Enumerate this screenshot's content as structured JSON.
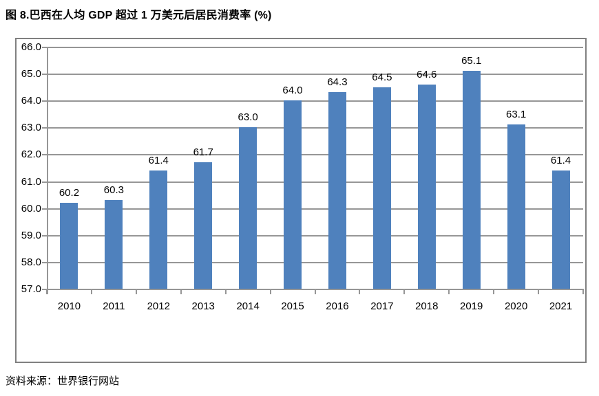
{
  "title": "图 8.巴西在人均 GDP 超过 1 万美元后居民消费率 (%)",
  "source": "资料来源：世界银行网站",
  "colors": {
    "bar": "#4F81BD",
    "gridline": "#969696",
    "border": "#808080",
    "text": "#000000"
  },
  "chart_data": {
    "type": "bar",
    "title": "图 8.巴西在人均 GDP 超过 1 万美元后居民消费率 (%)",
    "categories": [
      "2010",
      "2011",
      "2012",
      "2013",
      "2014",
      "2015",
      "2016",
      "2017",
      "2018",
      "2019",
      "2020",
      "2021"
    ],
    "values": [
      60.2,
      60.3,
      61.4,
      61.7,
      63.0,
      64.0,
      64.3,
      64.5,
      64.6,
      65.1,
      63.1,
      61.4
    ],
    "value_labels": [
      "60.2",
      "60.3",
      "61.4",
      "61.7",
      "63.0",
      "64.0",
      "64.3",
      "64.5",
      "64.6",
      "65.1",
      "63.1",
      "61.4"
    ],
    "xlabel": "",
    "ylabel": "",
    "ylim": [
      57.0,
      66.0
    ],
    "yticks": [
      57.0,
      58.0,
      59.0,
      60.0,
      61.0,
      62.0,
      63.0,
      64.0,
      65.0,
      66.0
    ],
    "ytick_labels": [
      "57.0",
      "58.0",
      "59.0",
      "60.0",
      "61.0",
      "62.0",
      "63.0",
      "64.0",
      "65.0",
      "66.0"
    ],
    "grid": true,
    "legend": "none",
    "bar_color": "#4F81BD",
    "gridline_color": "#969696"
  }
}
